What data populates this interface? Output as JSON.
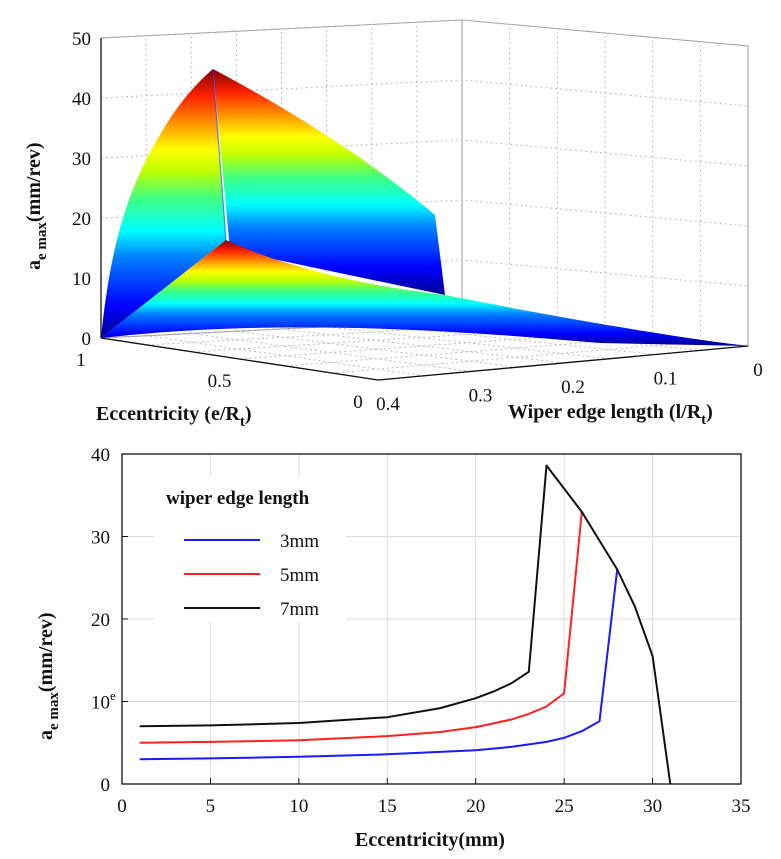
{
  "chart_data": [
    {
      "type": "surface3d",
      "zlabel": "a",
      "zlabel_sub": "e max",
      "zlabel_unit": "(mm/rev)",
      "xlabel": "Eccentricity (e/R",
      "xlabel_sub": "t",
      "xlabel_end": ")",
      "ylabel": "Wiper edge length (l/R",
      "ylabel_sub": "t",
      "ylabel_end": ")",
      "z_ticks": [
        "0",
        "10",
        "20",
        "30",
        "40",
        "50"
      ],
      "ecc_ticks": [
        "0",
        "0.5",
        "1"
      ],
      "wiper_ticks": [
        "0",
        "0.1",
        "0.2",
        "0.3",
        "0.4"
      ],
      "zlim": [
        0,
        50
      ],
      "ecc_range": [
        0,
        1
      ],
      "wiper_range": [
        0,
        0.4
      ],
      "peak": {
        "ecc": 1,
        "wiper": 0.4,
        "z": 45
      },
      "colormap": "jet",
      "grid": true
    },
    {
      "type": "line",
      "xlabel": "Eccentricity(mm)",
      "ylabel": "a",
      "ylabel_sub": "e max",
      "ylabel_unit": "(mm/rev)",
      "x_ticks": [
        "0",
        "5",
        "10",
        "15",
        "20",
        "25",
        "30",
        "35"
      ],
      "y_ticks": [
        "0",
        "10",
        "20",
        "30",
        "40"
      ],
      "xlim": [
        0,
        35
      ],
      "ylim": [
        0,
        40
      ],
      "grid": true,
      "legend_title": "wiper edge length",
      "legend_position": "top-left",
      "stray_mark": "e",
      "series": [
        {
          "name": "3mm",
          "color": "#1a1aff",
          "x": [
            1,
            5,
            10,
            15,
            20,
            22,
            24,
            25,
            26,
            27,
            28
          ],
          "y": [
            3.0,
            3.1,
            3.3,
            3.6,
            4.1,
            4.5,
            5.1,
            5.6,
            6.4,
            7.6,
            26.0
          ]
        },
        {
          "name": "5mm",
          "color": "#ff2020",
          "x": [
            1,
            5,
            10,
            15,
            18,
            20,
            22,
            23,
            24,
            25,
            26
          ],
          "y": [
            5.0,
            5.1,
            5.3,
            5.8,
            6.3,
            6.9,
            7.8,
            8.5,
            9.4,
            11.0,
            33.0
          ]
        },
        {
          "name": "7mm",
          "color": "#111111",
          "x": [
            1,
            5,
            10,
            15,
            18,
            20,
            21,
            22,
            23,
            24,
            26,
            28,
            29,
            30,
            31
          ],
          "y": [
            7.0,
            7.1,
            7.4,
            8.1,
            9.2,
            10.4,
            11.2,
            12.2,
            13.6,
            38.6,
            33.0,
            26.0,
            21.5,
            15.5,
            0.0
          ]
        }
      ]
    }
  ]
}
